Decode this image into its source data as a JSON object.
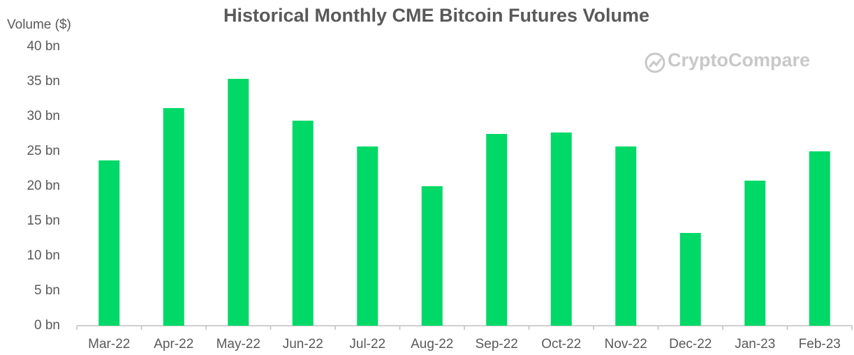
{
  "chart_data": {
    "type": "bar",
    "title": "Historical Monthly CME Bitcoin Futures Volume",
    "y_label": "Volume ($)",
    "watermark": "CryptoCompare",
    "categories": [
      "Mar-22",
      "Apr-22",
      "May-22",
      "Jun-22",
      "Jul-22",
      "Aug-22",
      "Sep-22",
      "Oct-22",
      "Nov-22",
      "Dec-22",
      "Jan-23",
      "Feb-23"
    ],
    "values": [
      23.7,
      31.2,
      35.4,
      29.4,
      25.7,
      20.0,
      27.5,
      27.7,
      25.7,
      13.3,
      20.8,
      25.0
    ],
    "color": "#00d967",
    "ylim": [
      0,
      40
    ],
    "yticks": [
      {
        "value": 0,
        "label": "0 bn"
      },
      {
        "value": 5,
        "label": "5 bn"
      },
      {
        "value": 10,
        "label": "10 bn"
      },
      {
        "value": 15,
        "label": "15 bn"
      },
      {
        "value": 20,
        "label": "20 bn"
      },
      {
        "value": 25,
        "label": "25 bn"
      },
      {
        "value": 30,
        "label": "30 bn"
      },
      {
        "value": 35,
        "label": "35 bn"
      },
      {
        "value": 40,
        "label": "40 bn"
      }
    ],
    "grid": false
  }
}
